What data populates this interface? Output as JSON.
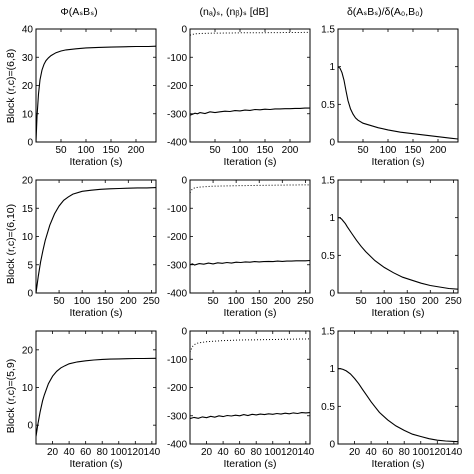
{
  "row_labels": [
    "Block (r,c)=(6,8)",
    "Block (r,c)=(6,10)",
    "Block (r,c)=(5,9)"
  ],
  "column_titles": [
    "Φ(AₛBₛ)",
    "(nₐ)ₛ, (nᵦ)ₛ [dB]",
    "δ(AₛBₛ)/δ(A₀,B₀)"
  ],
  "chart_data": [
    {
      "type": "line",
      "row": 0,
      "col": 0,
      "title": "Φ(AₛBₛ)",
      "xlabel": "Iteration (s)",
      "ylabel": "Block (r,c)=(6,8)",
      "xlim": [
        0,
        240
      ],
      "ylim": [
        0,
        40
      ],
      "xticks": [
        50,
        100,
        150,
        200
      ],
      "yticks": [
        0,
        10,
        20,
        30,
        40
      ],
      "series": [
        {
          "style": "solid",
          "x": [
            0,
            2,
            5,
            8,
            12,
            16,
            20,
            25,
            30,
            40,
            50,
            60,
            80,
            100,
            125,
            150,
            175,
            200,
            225,
            240
          ],
          "y": [
            0,
            9,
            17,
            22,
            25.5,
            27.5,
            28.8,
            29.8,
            30.6,
            31.6,
            32.2,
            32.6,
            33.0,
            33.3,
            33.5,
            33.6,
            33.7,
            33.8,
            33.8,
            33.9
          ]
        }
      ]
    },
    {
      "type": "line",
      "row": 0,
      "col": 1,
      "title": "(nₐ)ₛ, (nᵦ)ₛ [dB]",
      "xlabel": "Iteration (s)",
      "xlim": [
        0,
        240
      ],
      "ylim": [
        -400,
        0
      ],
      "xticks": [
        50,
        100,
        150,
        200
      ],
      "yticks": [
        -400,
        -300,
        -200,
        -100,
        0
      ],
      "series": [
        {
          "style": "solid",
          "x": [
            0,
            5,
            10,
            15,
            20,
            30,
            40,
            50,
            60,
            70,
            80,
            90,
            100,
            110,
            120,
            130,
            140,
            150,
            160,
            170,
            180,
            190,
            200,
            210,
            220,
            230,
            240
          ],
          "y": [
            -305,
            -302,
            -298,
            -300,
            -296,
            -299,
            -293,
            -296,
            -293,
            -291,
            -292,
            -289,
            -290,
            -287,
            -288,
            -285,
            -286,
            -284,
            -285,
            -283,
            -283,
            -282,
            -282,
            -281,
            -281,
            -280,
            -280
          ]
        },
        {
          "style": "dotted",
          "x": [
            0,
            5,
            10,
            20,
            40,
            60,
            80,
            100,
            150,
            200,
            240
          ],
          "y": [
            -22,
            -19,
            -17,
            -16,
            -15,
            -14.5,
            -14,
            -13.5,
            -13,
            -12.5,
            -12
          ]
        }
      ]
    },
    {
      "type": "line",
      "row": 0,
      "col": 2,
      "title": "δ(AₛBₛ)/δ(A₀,B₀)",
      "xlabel": "Iteration (s)",
      "xlim": [
        0,
        240
      ],
      "ylim": [
        0,
        1.5
      ],
      "xticks": [
        50,
        100,
        150,
        200
      ],
      "yticks": [
        0,
        0.5,
        1,
        1.5
      ],
      "series": [
        {
          "style": "solid",
          "x": [
            0,
            4,
            8,
            12,
            16,
            20,
            25,
            30,
            35,
            40,
            50,
            60,
            80,
            100,
            125,
            150,
            175,
            200,
            225,
            240
          ],
          "y": [
            1.0,
            0.98,
            0.92,
            0.82,
            0.68,
            0.55,
            0.44,
            0.37,
            0.32,
            0.29,
            0.25,
            0.23,
            0.19,
            0.16,
            0.13,
            0.11,
            0.09,
            0.07,
            0.05,
            0.04
          ]
        }
      ]
    },
    {
      "type": "line",
      "row": 1,
      "col": 0,
      "xlabel": "Iteration (s)",
      "ylabel": "Block (r,c)=(6,10)",
      "xlim": [
        0,
        260
      ],
      "ylim": [
        0,
        20
      ],
      "xticks": [
        50,
        100,
        150,
        200,
        250
      ],
      "yticks": [
        0,
        5,
        10,
        15,
        20
      ],
      "series": [
        {
          "style": "solid",
          "x": [
            0,
            5,
            10,
            15,
            20,
            30,
            40,
            50,
            60,
            70,
            80,
            100,
            120,
            140,
            160,
            180,
            200,
            220,
            240,
            260
          ],
          "y": [
            0,
            3.0,
            5.5,
            7.5,
            9.3,
            12.0,
            14.0,
            15.4,
            16.4,
            17.0,
            17.5,
            18.0,
            18.2,
            18.35,
            18.45,
            18.5,
            18.55,
            18.6,
            18.6,
            18.65
          ]
        }
      ]
    },
    {
      "type": "line",
      "row": 1,
      "col": 1,
      "xlabel": "Iteration (s)",
      "xlim": [
        0,
        260
      ],
      "ylim": [
        -400,
        0
      ],
      "xticks": [
        50,
        100,
        150,
        200,
        250
      ],
      "yticks": [
        -400,
        -300,
        -200,
        -100,
        0
      ],
      "series": [
        {
          "style": "solid",
          "x": [
            0,
            5,
            10,
            20,
            30,
            40,
            50,
            60,
            70,
            80,
            90,
            100,
            110,
            120,
            130,
            140,
            150,
            160,
            170,
            180,
            190,
            200,
            210,
            220,
            230,
            240,
            250,
            260
          ],
          "y": [
            -300,
            -297,
            -301,
            -296,
            -298,
            -294,
            -297,
            -293,
            -295,
            -292,
            -294,
            -291,
            -292,
            -290,
            -291,
            -289,
            -290,
            -289,
            -288,
            -289,
            -287,
            -288,
            -287,
            -287,
            -286,
            -286,
            -286,
            -285
          ]
        },
        {
          "style": "dotted",
          "x": [
            0,
            5,
            10,
            20,
            30,
            50,
            80,
            100,
            150,
            200,
            260
          ],
          "y": [
            -45,
            -32,
            -28,
            -25,
            -24,
            -22,
            -21,
            -20,
            -19,
            -18,
            -17
          ]
        }
      ]
    },
    {
      "type": "line",
      "row": 1,
      "col": 2,
      "xlabel": "Iteration (s)",
      "xlim": [
        0,
        260
      ],
      "ylim": [
        0,
        1.5
      ],
      "xticks": [
        50,
        100,
        150,
        200,
        250
      ],
      "yticks": [
        0,
        0.5,
        1,
        1.5
      ],
      "series": [
        {
          "style": "solid",
          "x": [
            0,
            4,
            8,
            12,
            16,
            20,
            30,
            40,
            50,
            60,
            70,
            80,
            100,
            120,
            140,
            160,
            180,
            200,
            220,
            240,
            260
          ],
          "y": [
            1.0,
            1.0,
            0.98,
            0.95,
            0.92,
            0.88,
            0.79,
            0.7,
            0.62,
            0.55,
            0.49,
            0.43,
            0.34,
            0.27,
            0.21,
            0.17,
            0.13,
            0.1,
            0.08,
            0.06,
            0.05
          ]
        }
      ]
    },
    {
      "type": "line",
      "row": 2,
      "col": 0,
      "xlabel": "Iteration (s)",
      "ylabel": "Block (r,c)=(5,9)",
      "xlim": [
        0,
        145
      ],
      "ylim": [
        -5,
        25
      ],
      "xticks": [
        20,
        40,
        60,
        80,
        100,
        120,
        140
      ],
      "yticks": [
        0,
        10,
        20
      ],
      "series": [
        {
          "style": "solid",
          "x": [
            0,
            2,
            5,
            8,
            10,
            15,
            20,
            25,
            30,
            35,
            40,
            50,
            60,
            70,
            80,
            90,
            100,
            110,
            120,
            130,
            145
          ],
          "y": [
            -3,
            0,
            3.5,
            6.5,
            8,
            11,
            13,
            14.3,
            15.2,
            15.8,
            16.3,
            16.8,
            17.1,
            17.3,
            17.45,
            17.55,
            17.6,
            17.65,
            17.7,
            17.7,
            17.75
          ]
        }
      ]
    },
    {
      "type": "line",
      "row": 2,
      "col": 1,
      "xlabel": "Iteration (s)",
      "xlim": [
        0,
        145
      ],
      "ylim": [
        -400,
        0
      ],
      "xticks": [
        20,
        40,
        60,
        80,
        100,
        120,
        140
      ],
      "yticks": [
        -400,
        -300,
        -200,
        -100,
        0
      ],
      "series": [
        {
          "style": "solid",
          "x": [
            0,
            5,
            10,
            15,
            20,
            25,
            30,
            35,
            40,
            45,
            50,
            55,
            60,
            65,
            70,
            75,
            80,
            85,
            90,
            95,
            100,
            105,
            110,
            115,
            120,
            125,
            130,
            135,
            140,
            145
          ],
          "y": [
            -310,
            -306,
            -309,
            -304,
            -307,
            -302,
            -305,
            -300,
            -303,
            -299,
            -301,
            -298,
            -300,
            -296,
            -299,
            -295,
            -297,
            -294,
            -296,
            -293,
            -295,
            -292,
            -294,
            -291,
            -293,
            -290,
            -292,
            -289,
            -290,
            -289
          ]
        },
        {
          "style": "dotted",
          "x": [
            0,
            3,
            6,
            10,
            20,
            30,
            40,
            60,
            80,
            100,
            120,
            145
          ],
          "y": [
            -75,
            -55,
            -47,
            -42,
            -38,
            -36,
            -34,
            -32,
            -31,
            -30,
            -29,
            -28
          ]
        }
      ]
    },
    {
      "type": "line",
      "row": 2,
      "col": 2,
      "xlabel": "Iteration (s)",
      "xlim": [
        0,
        145
      ],
      "ylim": [
        0,
        1.5
      ],
      "xticks": [
        20,
        40,
        60,
        80,
        100,
        120,
        140
      ],
      "yticks": [
        0,
        0.5,
        1,
        1.5
      ],
      "series": [
        {
          "style": "solid",
          "x": [
            0,
            3,
            6,
            10,
            15,
            20,
            25,
            30,
            35,
            40,
            45,
            50,
            60,
            70,
            80,
            90,
            100,
            110,
            120,
            130,
            145
          ],
          "y": [
            1.0,
            1.0,
            0.99,
            0.97,
            0.93,
            0.87,
            0.8,
            0.72,
            0.64,
            0.56,
            0.49,
            0.42,
            0.32,
            0.24,
            0.18,
            0.13,
            0.1,
            0.07,
            0.05,
            0.04,
            0.03
          ]
        }
      ]
    }
  ]
}
